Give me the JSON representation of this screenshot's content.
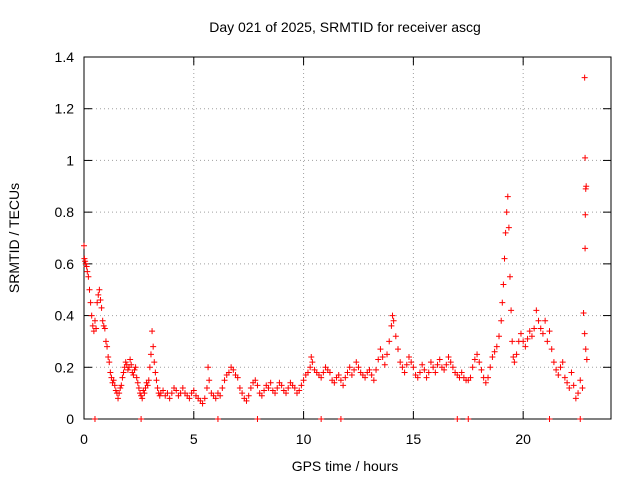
{
  "chart_data": {
    "type": "scatter",
    "title": "Day 021 of 2025, SRMTID for receiver ascg",
    "xlabel": "GPS time / hours",
    "ylabel": "SRMTID / TECUs",
    "xlim": [
      0,
      24
    ],
    "ylim": [
      0,
      1.4
    ],
    "xticks": [
      0,
      5,
      10,
      15,
      20
    ],
    "xtick_labels": [
      "0",
      "5",
      "10",
      "15",
      "20"
    ],
    "yticks": [
      0,
      0.2,
      0.4,
      0.6,
      0.8,
      1,
      1.2,
      1.4
    ],
    "ytick_labels": [
      "0",
      "0.2",
      "0.4",
      "0.6",
      "0.8",
      "1",
      "1.2",
      "1.4"
    ],
    "grid": true,
    "marker": "+",
    "color": "#ff0000",
    "series": [
      {
        "name": "SRMTID",
        "points": [
          [
            0.0,
            0.67
          ],
          [
            0.02,
            0.62
          ],
          [
            0.05,
            0.61
          ],
          [
            0.08,
            0.6
          ],
          [
            0.12,
            0.59
          ],
          [
            0.15,
            0.57
          ],
          [
            0.2,
            0.55
          ],
          [
            0.25,
            0.5
          ],
          [
            0.3,
            0.45
          ],
          [
            0.35,
            0.4
          ],
          [
            0.4,
            0.36
          ],
          [
            0.45,
            0.34
          ],
          [
            0.5,
            0.38
          ],
          [
            0.55,
            0.35
          ],
          [
            0.6,
            0.45
          ],
          [
            0.65,
            0.48
          ],
          [
            0.7,
            0.5
          ],
          [
            0.75,
            0.46
          ],
          [
            0.8,
            0.43
          ],
          [
            0.85,
            0.38
          ],
          [
            0.9,
            0.36
          ],
          [
            0.95,
            0.35
          ],
          [
            1.0,
            0.3
          ],
          [
            1.05,
            0.28
          ],
          [
            1.1,
            0.24
          ],
          [
            1.15,
            0.22
          ],
          [
            1.2,
            0.18
          ],
          [
            1.25,
            0.16
          ],
          [
            1.3,
            0.14
          ],
          [
            1.35,
            0.15
          ],
          [
            1.4,
            0.13
          ],
          [
            1.45,
            0.11
          ],
          [
            1.5,
            0.1
          ],
          [
            1.55,
            0.08
          ],
          [
            1.6,
            0.1
          ],
          [
            1.65,
            0.12
          ],
          [
            1.7,
            0.13
          ],
          [
            1.75,
            0.16
          ],
          [
            1.8,
            0.18
          ],
          [
            1.85,
            0.2
          ],
          [
            1.9,
            0.22
          ],
          [
            1.95,
            0.21
          ],
          [
            2.0,
            0.19
          ],
          [
            2.05,
            0.2
          ],
          [
            2.1,
            0.23
          ],
          [
            2.15,
            0.21
          ],
          [
            2.2,
            0.18
          ],
          [
            2.25,
            0.17
          ],
          [
            2.3,
            0.19
          ],
          [
            2.35,
            0.2
          ],
          [
            2.4,
            0.16
          ],
          [
            2.45,
            0.14
          ],
          [
            2.5,
            0.12
          ],
          [
            2.55,
            0.1
          ],
          [
            2.6,
            0.09
          ],
          [
            2.65,
            0.08
          ],
          [
            2.7,
            0.11
          ],
          [
            2.75,
            0.1
          ],
          [
            2.8,
            0.12
          ],
          [
            2.85,
            0.14
          ],
          [
            2.9,
            0.13
          ],
          [
            2.95,
            0.15
          ],
          [
            3.0,
            0.2
          ],
          [
            3.05,
            0.25
          ],
          [
            3.1,
            0.34
          ],
          [
            3.15,
            0.28
          ],
          [
            3.2,
            0.22
          ],
          [
            3.25,
            0.18
          ],
          [
            3.3,
            0.15
          ],
          [
            3.35,
            0.12
          ],
          [
            3.4,
            0.1
          ],
          [
            3.45,
            0.09
          ],
          [
            3.5,
            0.1
          ],
          [
            3.6,
            0.11
          ],
          [
            3.7,
            0.09
          ],
          [
            3.8,
            0.1
          ],
          [
            3.9,
            0.08
          ],
          [
            4.0,
            0.1
          ],
          [
            4.1,
            0.12
          ],
          [
            4.2,
            0.11
          ],
          [
            4.3,
            0.09
          ],
          [
            4.4,
            0.1
          ],
          [
            4.5,
            0.12
          ],
          [
            4.6,
            0.1
          ],
          [
            4.7,
            0.09
          ],
          [
            4.8,
            0.08
          ],
          [
            4.9,
            0.1
          ],
          [
            5.0,
            0.11
          ],
          [
            5.1,
            0.09
          ],
          [
            5.2,
            0.08
          ],
          [
            5.3,
            0.07
          ],
          [
            5.4,
            0.06
          ],
          [
            5.5,
            0.08
          ],
          [
            5.6,
            0.12
          ],
          [
            5.65,
            0.2
          ],
          [
            5.7,
            0.15
          ],
          [
            5.8,
            0.1
          ],
          [
            5.9,
            0.09
          ],
          [
            6.0,
            0.08
          ],
          [
            6.1,
            0.1
          ],
          [
            6.2,
            0.09
          ],
          [
            6.3,
            0.12
          ],
          [
            6.4,
            0.15
          ],
          [
            6.5,
            0.17
          ],
          [
            6.6,
            0.18
          ],
          [
            6.7,
            0.2
          ],
          [
            6.8,
            0.19
          ],
          [
            6.9,
            0.17
          ],
          [
            7.0,
            0.16
          ],
          [
            7.1,
            0.12
          ],
          [
            7.2,
            0.1
          ],
          [
            7.3,
            0.08
          ],
          [
            7.4,
            0.07
          ],
          [
            7.5,
            0.09
          ],
          [
            7.6,
            0.12
          ],
          [
            7.7,
            0.14
          ],
          [
            7.8,
            0.15
          ],
          [
            7.9,
            0.13
          ],
          [
            8.0,
            0.1
          ],
          [
            8.1,
            0.09
          ],
          [
            8.2,
            0.11
          ],
          [
            8.3,
            0.13
          ],
          [
            8.4,
            0.12
          ],
          [
            8.5,
            0.14
          ],
          [
            8.6,
            0.11
          ],
          [
            8.7,
            0.1
          ],
          [
            8.8,
            0.12
          ],
          [
            8.9,
            0.14
          ],
          [
            9.0,
            0.13
          ],
          [
            9.1,
            0.11
          ],
          [
            9.2,
            0.1
          ],
          [
            9.3,
            0.12
          ],
          [
            9.4,
            0.14
          ],
          [
            9.5,
            0.13
          ],
          [
            9.6,
            0.12
          ],
          [
            9.7,
            0.1
          ],
          [
            9.8,
            0.11
          ],
          [
            9.9,
            0.13
          ],
          [
            10.0,
            0.15
          ],
          [
            10.1,
            0.17
          ],
          [
            10.2,
            0.18
          ],
          [
            10.3,
            0.2
          ],
          [
            10.35,
            0.24
          ],
          [
            10.4,
            0.22
          ],
          [
            10.5,
            0.19
          ],
          [
            10.6,
            0.18
          ],
          [
            10.7,
            0.17
          ],
          [
            10.8,
            0.16
          ],
          [
            10.9,
            0.18
          ],
          [
            11.0,
            0.2
          ],
          [
            11.1,
            0.19
          ],
          [
            11.2,
            0.18
          ],
          [
            11.3,
            0.15
          ],
          [
            11.4,
            0.14
          ],
          [
            11.5,
            0.16
          ],
          [
            11.6,
            0.17
          ],
          [
            11.7,
            0.15
          ],
          [
            11.8,
            0.13
          ],
          [
            11.9,
            0.16
          ],
          [
            12.0,
            0.18
          ],
          [
            12.1,
            0.2
          ],
          [
            12.2,
            0.17
          ],
          [
            12.3,
            0.19
          ],
          [
            12.4,
            0.22
          ],
          [
            12.5,
            0.2
          ],
          [
            12.6,
            0.18
          ],
          [
            12.7,
            0.17
          ],
          [
            12.8,
            0.16
          ],
          [
            12.9,
            0.18
          ],
          [
            13.0,
            0.19
          ],
          [
            13.1,
            0.17
          ],
          [
            13.2,
            0.15
          ],
          [
            13.3,
            0.19
          ],
          [
            13.4,
            0.23
          ],
          [
            13.5,
            0.27
          ],
          [
            13.6,
            0.24
          ],
          [
            13.7,
            0.21
          ],
          [
            13.8,
            0.25
          ],
          [
            13.9,
            0.3
          ],
          [
            14.0,
            0.36
          ],
          [
            14.05,
            0.4
          ],
          [
            14.1,
            0.38
          ],
          [
            14.2,
            0.32
          ],
          [
            14.3,
            0.27
          ],
          [
            14.4,
            0.22
          ],
          [
            14.5,
            0.2
          ],
          [
            14.6,
            0.18
          ],
          [
            14.7,
            0.21
          ],
          [
            14.8,
            0.24
          ],
          [
            14.9,
            0.22
          ],
          [
            15.0,
            0.2
          ],
          [
            15.1,
            0.17
          ],
          [
            15.2,
            0.16
          ],
          [
            15.3,
            0.18
          ],
          [
            15.4,
            0.21
          ],
          [
            15.5,
            0.19
          ],
          [
            15.6,
            0.16
          ],
          [
            15.7,
            0.18
          ],
          [
            15.8,
            0.22
          ],
          [
            15.9,
            0.2
          ],
          [
            16.0,
            0.18
          ],
          [
            16.1,
            0.21
          ],
          [
            16.2,
            0.23
          ],
          [
            16.3,
            0.2
          ],
          [
            16.4,
            0.19
          ],
          [
            16.5,
            0.21
          ],
          [
            16.6,
            0.24
          ],
          [
            16.7,
            0.22
          ],
          [
            16.8,
            0.2
          ],
          [
            16.9,
            0.18
          ],
          [
            17.0,
            0.17
          ],
          [
            17.1,
            0.16
          ],
          [
            17.2,
            0.18
          ],
          [
            17.3,
            0.16
          ],
          [
            17.4,
            0.15
          ],
          [
            17.5,
            0.15
          ],
          [
            17.6,
            0.16
          ],
          [
            17.7,
            0.2
          ],
          [
            17.8,
            0.23
          ],
          [
            17.9,
            0.25
          ],
          [
            18.0,
            0.22
          ],
          [
            18.1,
            0.19
          ],
          [
            18.2,
            0.16
          ],
          [
            18.3,
            0.14
          ],
          [
            18.4,
            0.16
          ],
          [
            18.5,
            0.2
          ],
          [
            18.6,
            0.24
          ],
          [
            18.7,
            0.26
          ],
          [
            18.8,
            0.28
          ],
          [
            18.9,
            0.32
          ],
          [
            19.0,
            0.38
          ],
          [
            19.05,
            0.45
          ],
          [
            19.1,
            0.52
          ],
          [
            19.15,
            0.62
          ],
          [
            19.2,
            0.72
          ],
          [
            19.25,
            0.8
          ],
          [
            19.3,
            0.86
          ],
          [
            19.35,
            0.74
          ],
          [
            19.4,
            0.55
          ],
          [
            19.45,
            0.42
          ],
          [
            19.5,
            0.3
          ],
          [
            19.55,
            0.24
          ],
          [
            19.6,
            0.22
          ],
          [
            19.7,
            0.25
          ],
          [
            19.8,
            0.3
          ],
          [
            19.9,
            0.33
          ],
          [
            20.0,
            0.3
          ],
          [
            20.1,
            0.28
          ],
          [
            20.2,
            0.31
          ],
          [
            20.3,
            0.34
          ],
          [
            20.4,
            0.32
          ],
          [
            20.5,
            0.35
          ],
          [
            20.6,
            0.42
          ],
          [
            20.7,
            0.38
          ],
          [
            20.8,
            0.35
          ],
          [
            20.9,
            0.33
          ],
          [
            21.0,
            0.38
          ],
          [
            21.1,
            0.3
          ],
          [
            21.2,
            0.34
          ],
          [
            21.3,
            0.27
          ],
          [
            21.4,
            0.22
          ],
          [
            21.5,
            0.19
          ],
          [
            21.6,
            0.17
          ],
          [
            21.7,
            0.2
          ],
          [
            21.8,
            0.22
          ],
          [
            21.9,
            0.16
          ],
          [
            22.0,
            0.14
          ],
          [
            22.1,
            0.12
          ],
          [
            22.2,
            0.18
          ],
          [
            22.3,
            0.13
          ],
          [
            22.4,
            0.08
          ],
          [
            22.5,
            0.1
          ],
          [
            22.6,
            0.15
          ],
          [
            22.7,
            0.12
          ],
          [
            22.75,
            0.41
          ],
          [
            22.8,
            0.33
          ],
          [
            22.85,
            0.27
          ],
          [
            22.9,
            0.23
          ],
          [
            22.8,
            1.32
          ],
          [
            22.82,
            1.01
          ],
          [
            22.85,
            0.89
          ],
          [
            22.87,
            0.9
          ],
          [
            22.83,
            0.79
          ],
          [
            22.82,
            0.66
          ],
          [
            0.5,
            0.0
          ],
          [
            2.6,
            0.0
          ],
          [
            6.1,
            0.0
          ],
          [
            7.9,
            0.0
          ],
          [
            10.8,
            0.0
          ],
          [
            11.7,
            0.0
          ],
          [
            17.0,
            0.0
          ],
          [
            17.5,
            0.0
          ],
          [
            21.2,
            0.0
          ],
          [
            22.6,
            0.0
          ]
        ]
      }
    ]
  }
}
